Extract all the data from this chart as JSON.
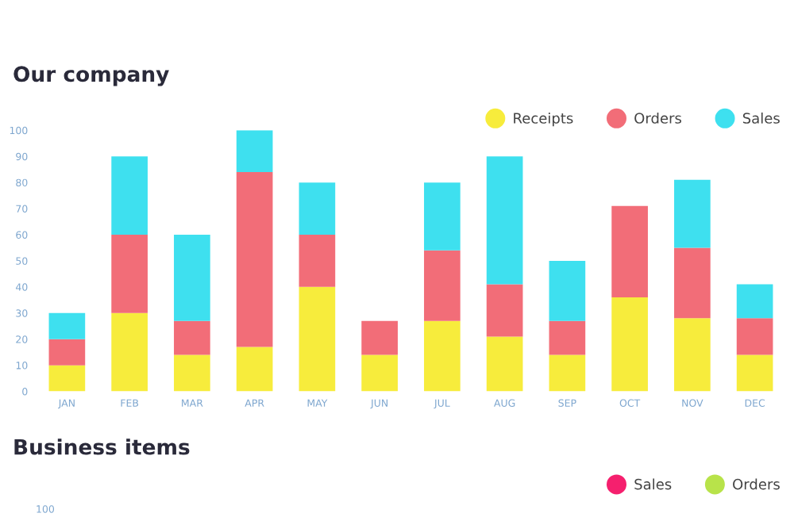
{
  "chart_data": [
    {
      "type": "bar",
      "title": "Our company",
      "stacked": true,
      "legend": "top right",
      "grid": false,
      "marker": "circle",
      "categories": [
        "JAN",
        "FEB",
        "MAR",
        "APR",
        "MAY",
        "JUN",
        "JUL",
        "AUG",
        "SEP",
        "OCT",
        "NOV",
        "DEC"
      ],
      "ylim": [
        0,
        100
      ],
      "yticks": [
        0,
        10,
        20,
        30,
        40,
        50,
        60,
        70,
        80,
        90,
        100
      ],
      "series": [
        {
          "name": "Receipts",
          "color": "#f7ec3c",
          "values": [
            10,
            30,
            14,
            17,
            40,
            14,
            27,
            21,
            14,
            36,
            28,
            14
          ]
        },
        {
          "name": "Orders",
          "color": "#f26d78",
          "values": [
            10,
            30,
            13,
            67,
            20,
            13,
            27,
            20,
            13,
            35,
            27,
            14
          ]
        },
        {
          "name": "Sales",
          "color": "#3ee0ef",
          "values": [
            10,
            30,
            33,
            16,
            20,
            0,
            26,
            49,
            23,
            0,
            26,
            13
          ]
        }
      ]
    },
    {
      "type": "other",
      "title": "Business items",
      "legend": "top right",
      "series": [
        {
          "name": "Sales",
          "color": "#f5206e"
        },
        {
          "name": "Orders",
          "color": "#b8e34a"
        }
      ],
      "annotations": [
        "100"
      ]
    }
  ]
}
